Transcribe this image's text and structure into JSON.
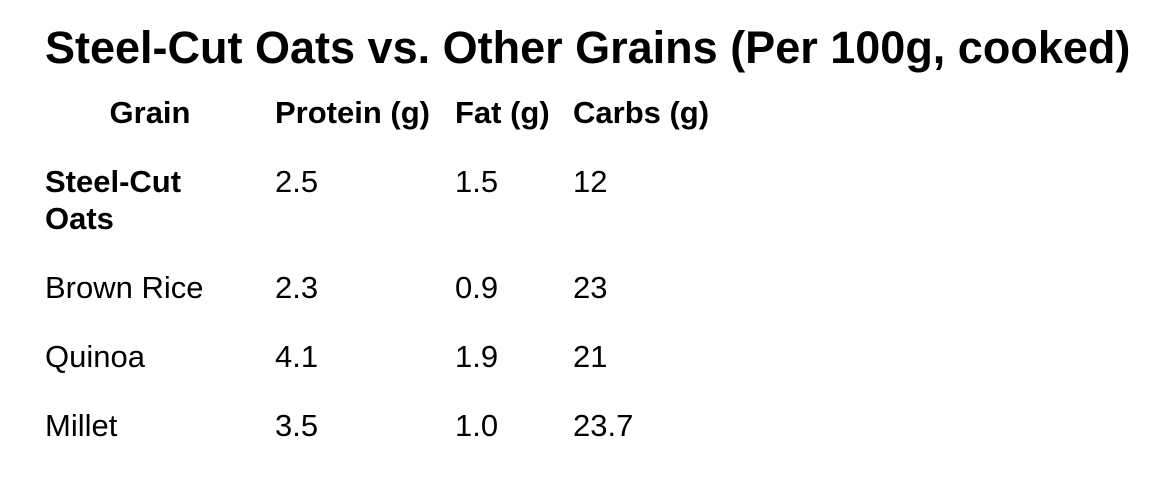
{
  "page": {
    "title": "Steel-Cut Oats vs. Other Grains (Per 100g, cooked)"
  },
  "table": {
    "headers": [
      "Grain",
      "Protein (g)",
      "Fat (g)",
      "Carbs (g)"
    ],
    "rows": [
      {
        "grain": "Steel-Cut Oats",
        "protein": "2.5",
        "fat": "1.5",
        "carbs": "12",
        "emphasis": true
      },
      {
        "grain": "Brown Rice",
        "protein": "2.3",
        "fat": "0.9",
        "carbs": "23",
        "emphasis": false
      },
      {
        "grain": "Quinoa",
        "protein": "4.1",
        "fat": "1.9",
        "carbs": "21",
        "emphasis": false
      },
      {
        "grain": "Millet",
        "protein": "3.5",
        "fat": "1.0",
        "carbs": "23.7",
        "emphasis": false
      }
    ]
  },
  "chart_data": {
    "type": "table",
    "title": "Steel-Cut Oats vs. Other Grains (Per 100g, cooked)",
    "columns": [
      "Grain",
      "Protein (g)",
      "Fat (g)",
      "Carbs (g)"
    ],
    "rows": [
      [
        "Steel-Cut Oats",
        2.5,
        1.5,
        12
      ],
      [
        "Brown Rice",
        2.3,
        0.9,
        23
      ],
      [
        "Quinoa",
        4.1,
        1.9,
        21
      ],
      [
        "Millet",
        3.5,
        1.0,
        23.7
      ]
    ]
  },
  "colors": {
    "text": "#000000",
    "background": "#ffffff"
  }
}
